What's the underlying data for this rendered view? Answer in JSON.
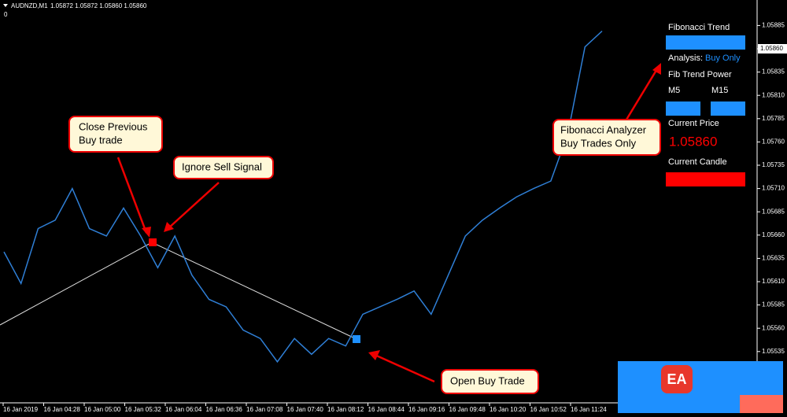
{
  "header": {
    "symbol": "AUDNZD,M1",
    "ohlc": "1.05872 1.05872 1.05860 1.05860",
    "zero": "0"
  },
  "chart": {
    "price_ticks": [
      {
        "value": 1.05885,
        "label": "1.05885"
      },
      {
        "value": 1.0586,
        "label": "1.05860"
      },
      {
        "value": 1.05835,
        "label": "1.05835"
      },
      {
        "value": 1.0581,
        "label": "1.05810"
      },
      {
        "value": 1.05785,
        "label": "1.05785"
      },
      {
        "value": 1.0576,
        "label": "1.05760"
      },
      {
        "value": 1.05735,
        "label": "1.05735"
      },
      {
        "value": 1.0571,
        "label": "1.05710"
      },
      {
        "value": 1.05685,
        "label": "1.05685"
      },
      {
        "value": 1.0566,
        "label": "1.05660"
      },
      {
        "value": 1.05635,
        "label": "1.05635"
      },
      {
        "value": 1.0561,
        "label": "1.05610"
      },
      {
        "value": 1.05585,
        "label": "1.05585"
      },
      {
        "value": 1.0556,
        "label": "1.05560"
      },
      {
        "value": 1.05535,
        "label": "1.05535"
      }
    ],
    "current_price": {
      "value": 1.0586,
      "label": "1.05860"
    },
    "time_labels": [
      "16 Jan 2019",
      "16 Jan 04:28",
      "16 Jan 05:00",
      "16 Jan 05:32",
      "16 Jan 06:04",
      "16 Jan 06:36",
      "16 Jan 07:08",
      "16 Jan 07:40",
      "16 Jan 08:12",
      "16 Jan 08:44",
      "16 Jan 09:16",
      "16 Jan 09:48",
      "16 Jan 10:20",
      "16 Jan 10:52",
      "16 Jan 11:24"
    ],
    "price_path": [
      1.05642,
      1.05608,
      1.05667,
      1.05676,
      1.0571,
      1.05667,
      1.05659,
      1.05689,
      1.05659,
      1.05625,
      1.05659,
      1.05617,
      1.05591,
      1.05583,
      1.05558,
      1.05549,
      1.05524,
      1.05549,
      1.05532,
      1.05549,
      1.05541,
      1.05575,
      1.05583,
      1.05591,
      1.056,
      1.05575,
      1.05617,
      1.05659,
      1.05676,
      1.05689,
      1.05701,
      1.0571,
      1.05718,
      1.05769,
      1.05862,
      1.05879
    ]
  },
  "panel": {
    "trend_title": "Fibonacci Trend",
    "analysis_label": "Analysis:",
    "analysis_value": "Buy Only",
    "power_title": "Fib Trend Power",
    "m5": "M5",
    "m15": "M15",
    "price_title": "Current Price",
    "price_value": "1.05860",
    "candle_title": "Current Candle"
  },
  "annotations": {
    "close_previous": [
      "Close Previous",
      "Buy trade"
    ],
    "ignore_sell": "Ignore Sell Signal",
    "open_buy": "Open Buy Trade",
    "fib_analyzer": [
      "Fibonacci Analyzer",
      "Buy Trades Only"
    ]
  },
  "logo": "EA"
}
